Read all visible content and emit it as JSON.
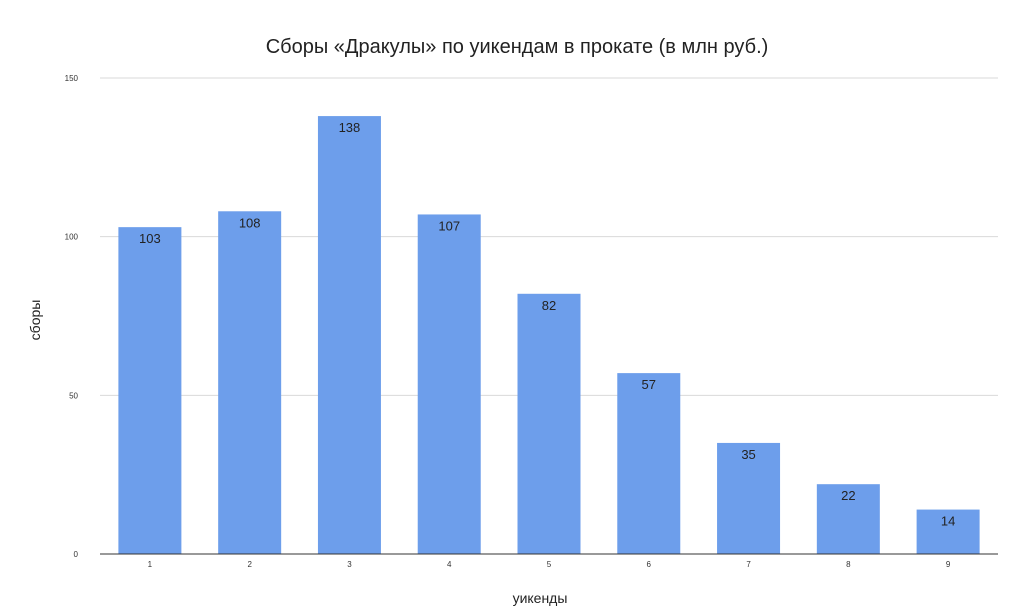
{
  "chart_data": {
    "type": "bar",
    "title": "Сборы «Дракулы» по уикендам в прокате (в млн руб.)",
    "xlabel": "уикенды",
    "ylabel": "сборы",
    "categories": [
      "1",
      "2",
      "3",
      "4",
      "5",
      "6",
      "7",
      "8",
      "9"
    ],
    "values": [
      103,
      108,
      138,
      107,
      82,
      57,
      35,
      22,
      14
    ],
    "data_labels": [
      "103",
      "108",
      "138",
      "107",
      "82",
      "57",
      "35",
      "22",
      "14"
    ],
    "ylim": [
      0,
      150
    ],
    "yticks": [
      0,
      50,
      100,
      150
    ],
    "ytick_labels": [
      "0",
      "50",
      "100",
      "150"
    ],
    "grid": true,
    "legend": "none",
    "bar_color": "#6d9eeb"
  }
}
